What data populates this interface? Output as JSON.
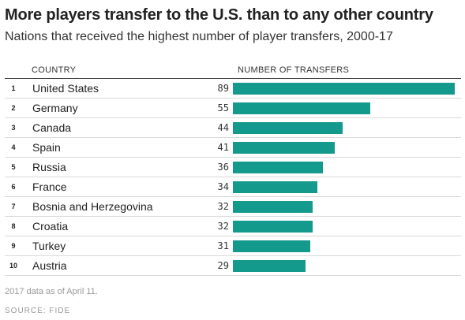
{
  "header": {
    "title": "More players transfer to the U.S. than to any other country",
    "subtitle": "Nations that received the highest number of player transfers, 2000-17"
  },
  "columns": {
    "country": "COUNTRY",
    "transfers": "NUMBER OF TRANSFERS"
  },
  "footer": {
    "note": "2017 data as of April 11.",
    "source": "SOURCE: FIDE"
  },
  "colors": {
    "bar": "#14998d"
  },
  "chart_data": {
    "type": "bar",
    "orientation": "horizontal",
    "title": "More players transfer to the U.S. than to any other country",
    "subtitle": "Nations that received the highest number of player transfers, 2000-17",
    "xlabel": "NUMBER OF TRANSFERS",
    "ylabel": "COUNTRY",
    "ranks": [
      "1",
      "2",
      "3",
      "4",
      "5",
      "6",
      "7",
      "8",
      "9",
      "10"
    ],
    "categories": [
      "United States",
      "Germany",
      "Canada",
      "Spain",
      "Russia",
      "France",
      "Bosnia and Herzegovina",
      "Croatia",
      "Turkey",
      "Austria"
    ],
    "values": [
      89,
      55,
      44,
      41,
      36,
      34,
      32,
      32,
      31,
      29
    ],
    "xlim": [
      0,
      89
    ],
    "grid": false,
    "legend": "none"
  }
}
